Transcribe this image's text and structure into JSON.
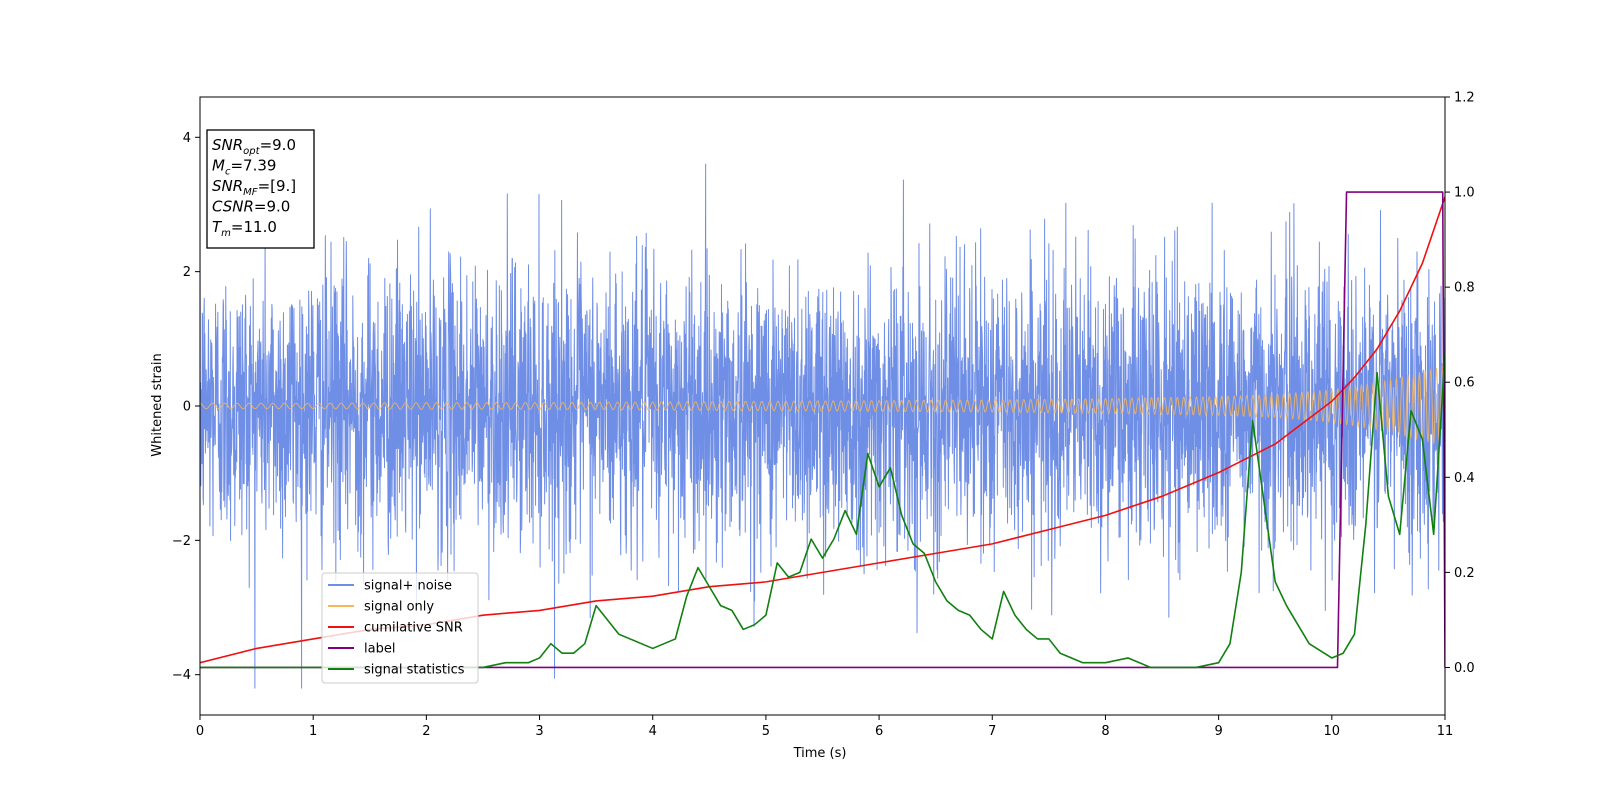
{
  "chart_data": {
    "type": "line",
    "xlabel": "Time (s)",
    "ylabel": "Whitened strain",
    "xlim": [
      0,
      11
    ],
    "ylim": [
      -4.6,
      4.6
    ],
    "y2lim": [
      -0.1,
      1.2
    ],
    "xticks": [
      0,
      1,
      2,
      3,
      4,
      5,
      6,
      7,
      8,
      9,
      10,
      11
    ],
    "yticks": [
      -4,
      -2,
      0,
      2,
      4
    ],
    "y2ticks": [
      0.0,
      0.2,
      0.4,
      0.6,
      0.8,
      1.0,
      1.2
    ],
    "legend_position": "lower-left",
    "grid": false,
    "colors": {
      "signal_noise": "#6f8ee6",
      "signal_only": "#f5b65c",
      "cumulative_snr": "#ee1111",
      "label": "#800080",
      "signal_statistics": "#118011"
    },
    "series": [
      {
        "name": "signal+ noise",
        "axis": "left",
        "kind": "noise_band",
        "amplitude_std": 1.0
      },
      {
        "name": "signal only",
        "axis": "left",
        "kind": "chirp",
        "x": [
          0,
          1,
          2,
          3,
          4,
          5,
          6,
          7,
          8,
          9,
          9.5,
          10,
          10.5,
          11
        ],
        "envelope": [
          0.04,
          0.04,
          0.05,
          0.05,
          0.06,
          0.07,
          0.08,
          0.09,
          0.11,
          0.14,
          0.17,
          0.24,
          0.38,
          0.6
        ]
      },
      {
        "name": "cumilative SNR",
        "axis": "right",
        "x": [
          0,
          0.5,
          1,
          1.5,
          2,
          2.5,
          3,
          3.5,
          4,
          4.5,
          5,
          5.5,
          6,
          6.5,
          7,
          7.5,
          8,
          8.5,
          9,
          9.5,
          10,
          10.2,
          10.4,
          10.6,
          10.8,
          11
        ],
        "y": [
          0.01,
          0.04,
          0.06,
          0.08,
          0.09,
          0.11,
          0.12,
          0.14,
          0.15,
          0.17,
          0.18,
          0.2,
          0.22,
          0.24,
          0.26,
          0.29,
          0.32,
          0.36,
          0.41,
          0.47,
          0.56,
          0.61,
          0.67,
          0.75,
          0.85,
          0.99
        ]
      },
      {
        "name": "label",
        "axis": "right",
        "x": [
          0,
          10.05,
          10.13,
          10.98,
          11
        ],
        "y": [
          0.0,
          0.0,
          1.0,
          1.0,
          0.0
        ]
      },
      {
        "name": "signal statistics",
        "axis": "right",
        "x": [
          0,
          0.5,
          1,
          1.5,
          2,
          2.5,
          2.7,
          2.9,
          3.0,
          3.1,
          3.2,
          3.3,
          3.4,
          3.5,
          3.6,
          3.7,
          3.8,
          3.9,
          4.0,
          4.1,
          4.2,
          4.3,
          4.4,
          4.5,
          4.6,
          4.7,
          4.8,
          4.9,
          5.0,
          5.1,
          5.2,
          5.3,
          5.4,
          5.5,
          5.6,
          5.7,
          5.8,
          5.9,
          6.0,
          6.1,
          6.2,
          6.3,
          6.4,
          6.5,
          6.6,
          6.7,
          6.8,
          6.9,
          7.0,
          7.1,
          7.2,
          7.3,
          7.4,
          7.5,
          7.6,
          7.7,
          7.8,
          8.0,
          8.2,
          8.4,
          8.6,
          8.8,
          9.0,
          9.1,
          9.2,
          9.3,
          9.4,
          9.5,
          9.6,
          9.7,
          9.8,
          10.0,
          10.1,
          10.2,
          10.3,
          10.4,
          10.5,
          10.6,
          10.7,
          10.8,
          10.9,
          11.0
        ],
        "y": [
          0.0,
          0.0,
          0.0,
          0.0,
          0.0,
          0.0,
          0.01,
          0.01,
          0.02,
          0.05,
          0.03,
          0.03,
          0.05,
          0.13,
          0.1,
          0.07,
          0.06,
          0.05,
          0.04,
          0.05,
          0.06,
          0.15,
          0.21,
          0.17,
          0.13,
          0.12,
          0.08,
          0.09,
          0.11,
          0.22,
          0.19,
          0.2,
          0.27,
          0.23,
          0.27,
          0.33,
          0.28,
          0.45,
          0.38,
          0.42,
          0.32,
          0.26,
          0.24,
          0.18,
          0.14,
          0.12,
          0.11,
          0.08,
          0.06,
          0.16,
          0.11,
          0.08,
          0.06,
          0.06,
          0.03,
          0.02,
          0.01,
          0.01,
          0.02,
          0.0,
          0.0,
          0.0,
          0.01,
          0.05,
          0.2,
          0.52,
          0.35,
          0.18,
          0.13,
          0.09,
          0.05,
          0.02,
          0.03,
          0.07,
          0.3,
          0.62,
          0.36,
          0.28,
          0.54,
          0.48,
          0.28,
          0.66
        ]
      }
    ],
    "annotation_lines": [
      {
        "main": "SNR",
        "sub": "opt",
        "value": "=9.0",
        "italic": true
      },
      {
        "main": "M",
        "sub": "c",
        "value": "=7.39",
        "italic": true
      },
      {
        "main": "SNR",
        "sub": "MF",
        "value": "=[9.]",
        "italic": true
      },
      {
        "main": "CSNR",
        "sub": "",
        "value": "=9.0",
        "italic": true
      },
      {
        "main": "T",
        "sub": "m",
        "value": "=11.0",
        "italic": true
      }
    ]
  }
}
